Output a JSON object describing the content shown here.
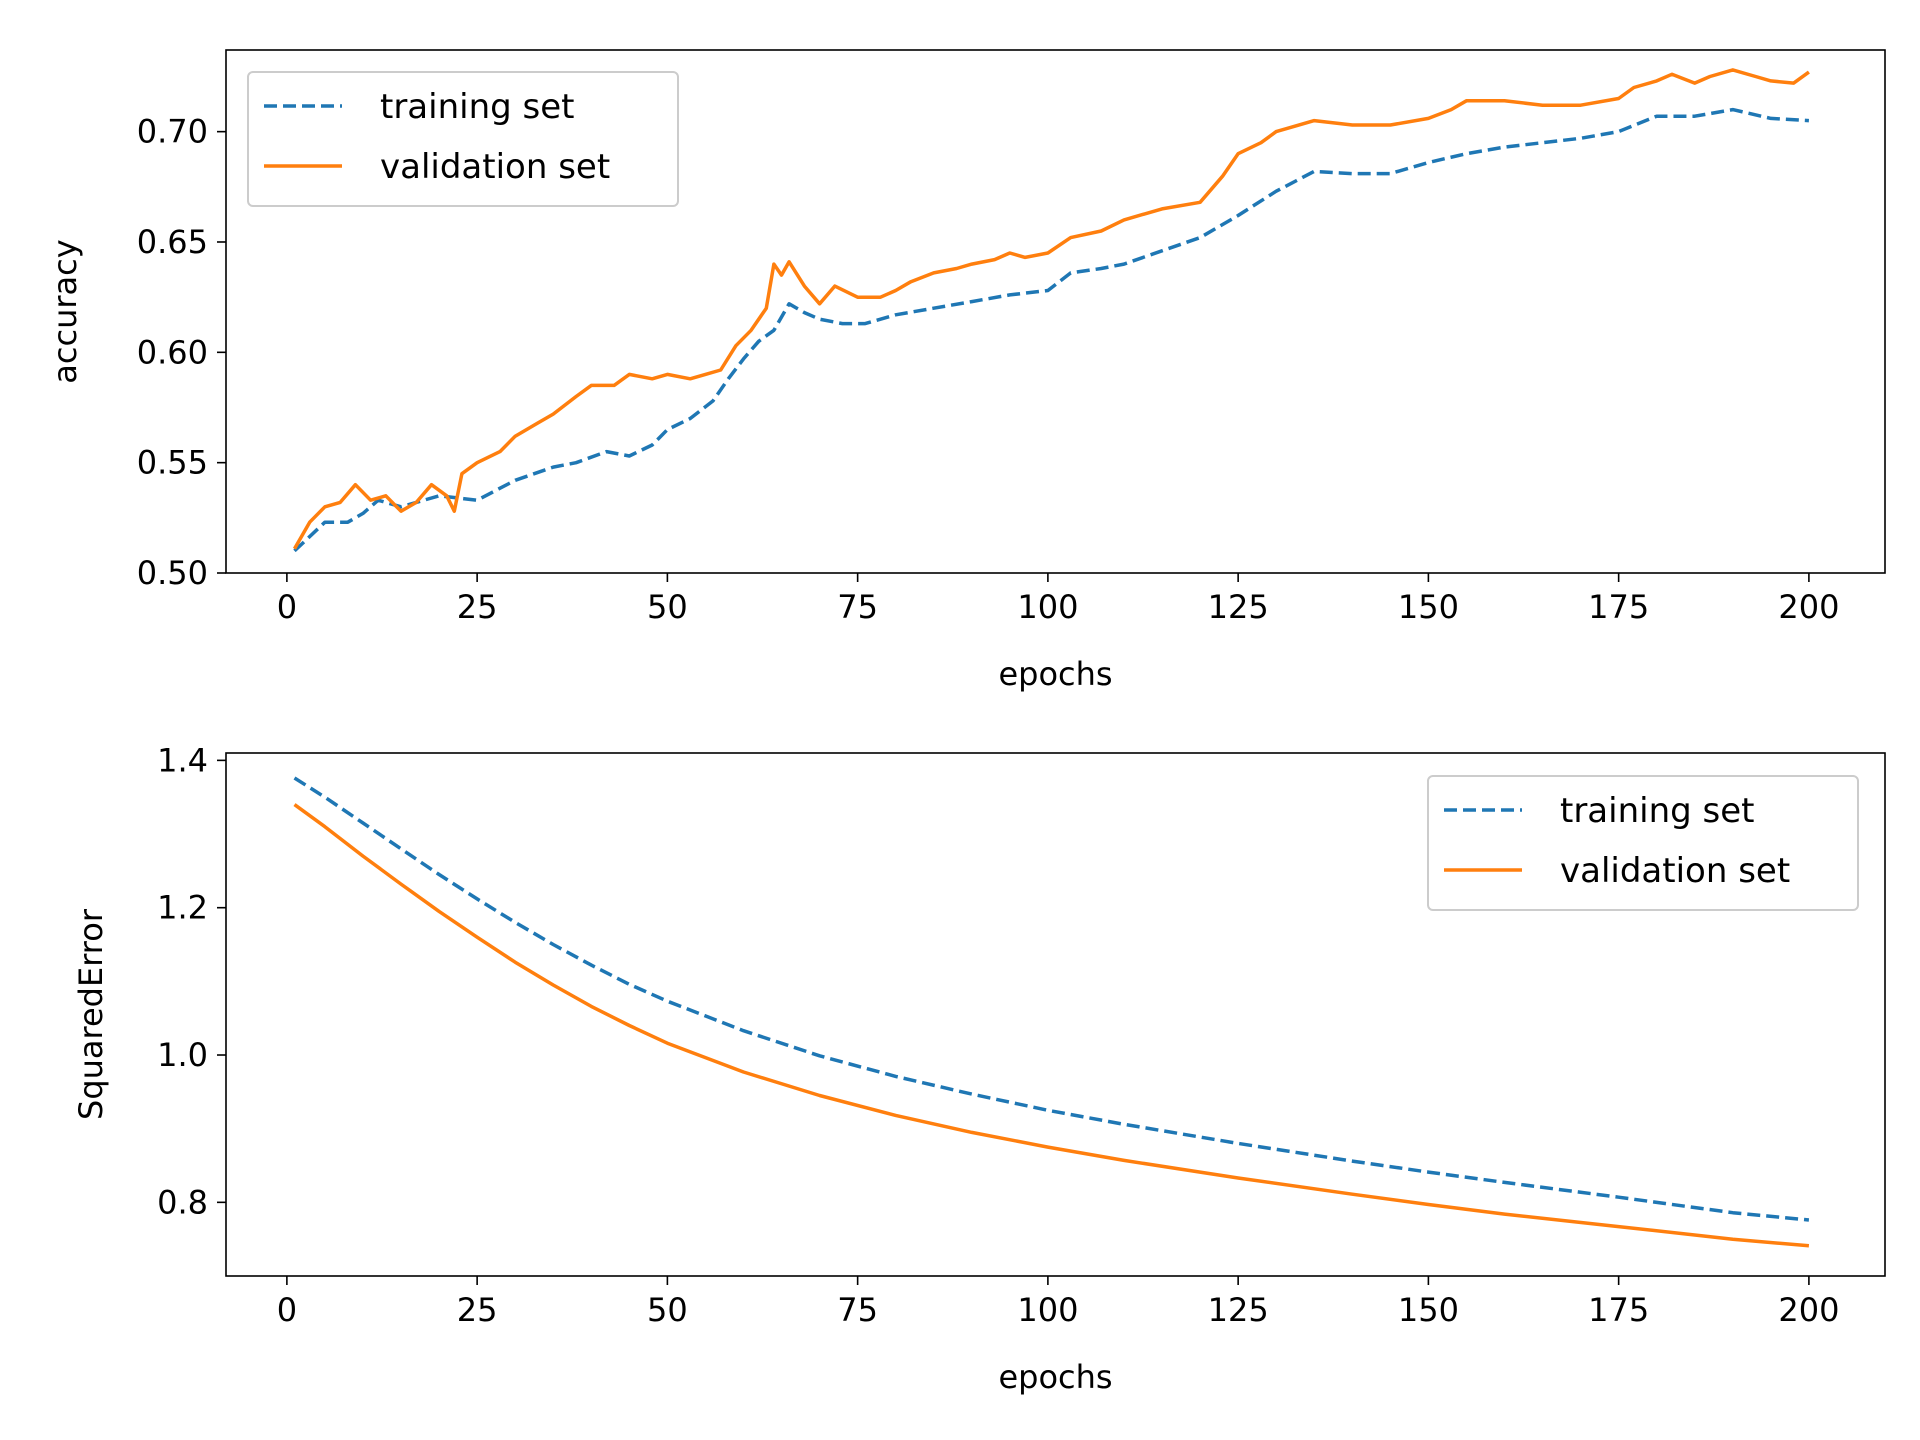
{
  "chart_data": [
    {
      "type": "line",
      "xlabel": "epochs",
      "ylabel": "accuracy",
      "xlim": [
        -8,
        210
      ],
      "ylim": [
        0.5,
        0.737
      ],
      "xticks": [
        0,
        25,
        50,
        75,
        100,
        125,
        150,
        175,
        200
      ],
      "xtick_labels": [
        "0",
        "25",
        "50",
        "75",
        "100",
        "125",
        "150",
        "175",
        "200"
      ],
      "yticks": [
        0.5,
        0.55,
        0.6,
        0.65,
        0.7
      ],
      "ytick_labels": [
        "0.50",
        "0.55",
        "0.60",
        "0.65",
        "0.70"
      ],
      "legend_position": "upper-left",
      "grid": false,
      "series": [
        {
          "name": "training set",
          "color": "#1f77b4",
          "style": "dashed",
          "x": [
            1,
            5,
            8,
            10,
            12,
            15,
            20,
            25,
            30,
            35,
            38,
            42,
            45,
            48,
            50,
            53,
            56,
            58,
            60,
            62,
            64,
            66,
            68,
            70,
            73,
            76,
            80,
            85,
            90,
            95,
            100,
            103,
            107,
            110,
            115,
            120,
            125,
            130,
            135,
            140,
            145,
            150,
            155,
            160,
            165,
            170,
            175,
            180,
            185,
            190,
            195,
            200
          ],
          "y": [
            0.51,
            0.523,
            0.523,
            0.527,
            0.533,
            0.53,
            0.535,
            0.533,
            0.542,
            0.548,
            0.55,
            0.555,
            0.553,
            0.558,
            0.565,
            0.57,
            0.578,
            0.588,
            0.597,
            0.605,
            0.61,
            0.622,
            0.618,
            0.615,
            0.613,
            0.613,
            0.617,
            0.62,
            0.623,
            0.626,
            0.628,
            0.636,
            0.638,
            0.64,
            0.646,
            0.652,
            0.662,
            0.673,
            0.682,
            0.681,
            0.681,
            0.686,
            0.69,
            0.693,
            0.695,
            0.697,
            0.7,
            0.707,
            0.707,
            0.71,
            0.706,
            0.705
          ]
        },
        {
          "name": "validation set",
          "color": "#ff7f0e",
          "style": "solid",
          "x": [
            1,
            3,
            5,
            7,
            9,
            11,
            13,
            15,
            17,
            19,
            21,
            22,
            23,
            25,
            28,
            30,
            33,
            35,
            38,
            40,
            43,
            45,
            48,
            50,
            53,
            55,
            57,
            59,
            61,
            63,
            64,
            65,
            66,
            68,
            70,
            72,
            75,
            78,
            80,
            82,
            85,
            88,
            90,
            93,
            95,
            97,
            100,
            103,
            107,
            110,
            115,
            120,
            123,
            125,
            128,
            130,
            135,
            140,
            145,
            150,
            153,
            155,
            160,
            165,
            170,
            175,
            177,
            180,
            182,
            185,
            187,
            190,
            193,
            195,
            198,
            200
          ],
          "y": [
            0.511,
            0.523,
            0.53,
            0.532,
            0.54,
            0.533,
            0.535,
            0.528,
            0.532,
            0.54,
            0.535,
            0.528,
            0.545,
            0.55,
            0.555,
            0.562,
            0.568,
            0.572,
            0.58,
            0.585,
            0.585,
            0.59,
            0.588,
            0.59,
            0.588,
            0.59,
            0.592,
            0.603,
            0.61,
            0.62,
            0.64,
            0.635,
            0.641,
            0.63,
            0.622,
            0.63,
            0.625,
            0.625,
            0.628,
            0.632,
            0.636,
            0.638,
            0.64,
            0.642,
            0.645,
            0.643,
            0.645,
            0.652,
            0.655,
            0.66,
            0.665,
            0.668,
            0.68,
            0.69,
            0.695,
            0.7,
            0.705,
            0.703,
            0.703,
            0.706,
            0.71,
            0.714,
            0.714,
            0.712,
            0.712,
            0.715,
            0.72,
            0.723,
            0.726,
            0.722,
            0.725,
            0.728,
            0.725,
            0.723,
            0.722,
            0.727
          ]
        }
      ]
    },
    {
      "type": "line",
      "xlabel": "epochs",
      "ylabel": "SquaredError",
      "xlim": [
        -8,
        210
      ],
      "ylim": [
        0.7,
        1.41
      ],
      "xticks": [
        0,
        25,
        50,
        75,
        100,
        125,
        150,
        175,
        200
      ],
      "xtick_labels": [
        "0",
        "25",
        "50",
        "75",
        "100",
        "125",
        "150",
        "175",
        "200"
      ],
      "yticks": [
        0.8,
        1.0,
        1.2,
        1.4
      ],
      "ytick_labels": [
        "0.8",
        "1.0",
        "1.2",
        "1.4"
      ],
      "legend_position": "upper-right",
      "grid": false,
      "series": [
        {
          "name": "training set",
          "color": "#1f77b4",
          "style": "dashed",
          "x": [
            1,
            5,
            10,
            15,
            20,
            25,
            30,
            35,
            40,
            45,
            50,
            60,
            70,
            80,
            90,
            100,
            110,
            125,
            140,
            150,
            160,
            175,
            190,
            200
          ],
          "y": [
            1.376,
            1.35,
            1.315,
            1.28,
            1.245,
            1.212,
            1.18,
            1.15,
            1.122,
            1.096,
            1.073,
            1.033,
            0.999,
            0.971,
            0.947,
            0.925,
            0.906,
            0.88,
            0.856,
            0.841,
            0.827,
            0.807,
            0.786,
            0.776
          ]
        },
        {
          "name": "validation set",
          "color": "#ff7f0e",
          "style": "solid",
          "x": [
            1,
            5,
            10,
            15,
            20,
            25,
            30,
            35,
            40,
            45,
            50,
            60,
            70,
            80,
            90,
            100,
            110,
            125,
            140,
            150,
            160,
            175,
            190,
            200
          ],
          "y": [
            1.34,
            1.31,
            1.27,
            1.232,
            1.195,
            1.16,
            1.126,
            1.095,
            1.066,
            1.04,
            1.016,
            0.977,
            0.945,
            0.918,
            0.895,
            0.875,
            0.857,
            0.833,
            0.811,
            0.797,
            0.784,
            0.767,
            0.75,
            0.741
          ]
        }
      ]
    }
  ]
}
